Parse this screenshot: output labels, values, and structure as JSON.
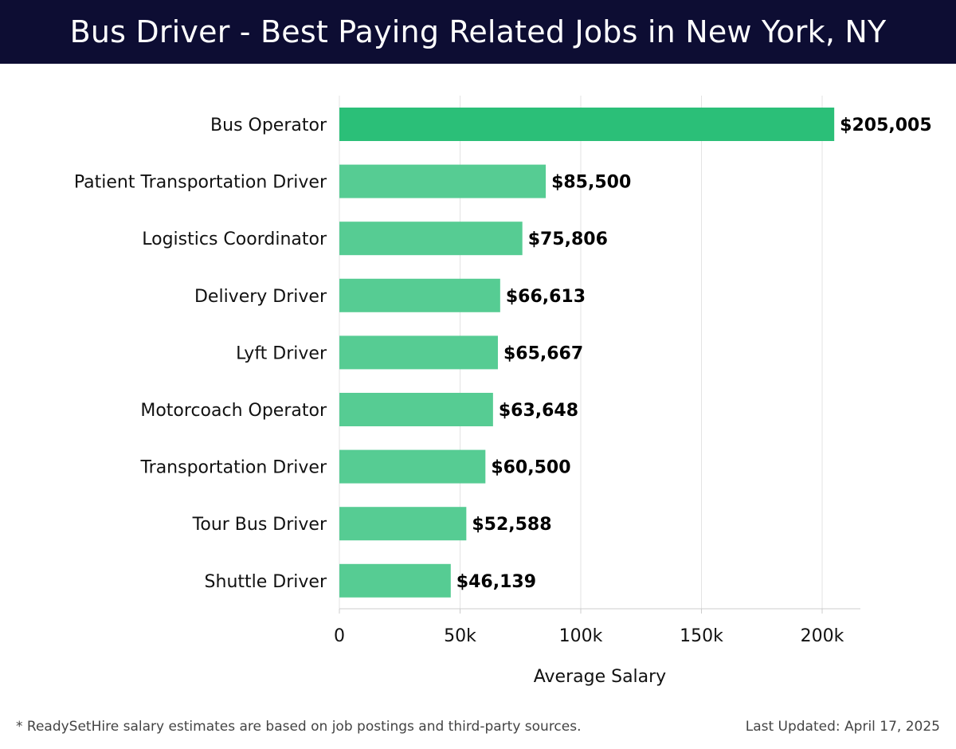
{
  "header": {
    "title": "Bus Driver - Best Paying Related Jobs in New York, NY"
  },
  "chart_data": {
    "type": "bar",
    "orientation": "horizontal",
    "title": "Bus Driver - Best Paying Related Jobs in New York, NY",
    "xlabel": "Average Salary",
    "ylabel": "",
    "xlim": [
      0,
      215000
    ],
    "grid": true,
    "categories": [
      "Bus Operator",
      "Patient Transportation Driver",
      "Logistics Coordinator",
      "Delivery Driver",
      "Lyft Driver",
      "Motorcoach Operator",
      "Transportation Driver",
      "Tour Bus Driver",
      "Shuttle Driver"
    ],
    "values": [
      205005,
      85500,
      75806,
      66613,
      65667,
      63648,
      60500,
      52588,
      46139
    ],
    "value_labels": [
      "$205,005",
      "$85,500",
      "$75,806",
      "$66,613",
      "$65,667",
      "$63,648",
      "$60,500",
      "$52,588",
      "$46,139"
    ],
    "x_ticks": [
      0,
      50000,
      100000,
      150000,
      200000
    ],
    "x_tick_labels": [
      "0",
      "50k",
      "100k",
      "150k",
      "200k"
    ],
    "colors": {
      "highlight": "#2bbf78",
      "bar": "#56cc93",
      "grid": "#e3e3e3",
      "axis": "#cccccc",
      "text": "#111111"
    }
  },
  "footer": {
    "note": "* ReadySetHire salary estimates are based on job postings and third-party sources.",
    "updated_label": "Last Updated:",
    "updated_date": "April 17, 2025"
  }
}
